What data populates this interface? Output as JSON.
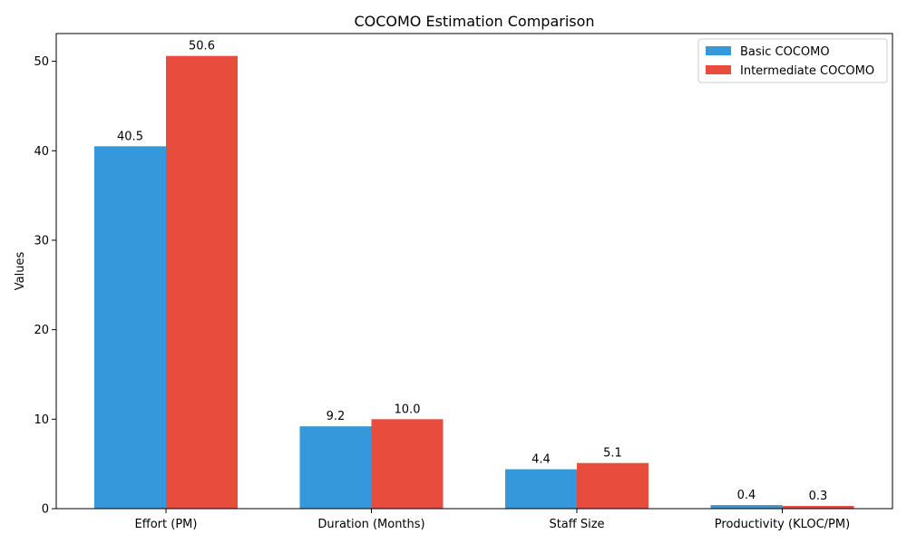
{
  "chart_data": {
    "type": "bar",
    "title": "COCOMO Estimation Comparison",
    "xlabel": "",
    "ylabel": "Values",
    "categories": [
      "Effort (PM)",
      "Duration (Months)",
      "Staff Size",
      "Productivity (KLOC/PM)"
    ],
    "series": [
      {
        "name": "Basic COCOMO",
        "color": "#3498db",
        "values": [
          40.5,
          9.2,
          4.4,
          0.4
        ],
        "labels": [
          "40.5",
          "9.2",
          "4.4",
          "0.4"
        ]
      },
      {
        "name": "Intermediate COCOMO",
        "color": "#e74c3c",
        "values": [
          50.6,
          10.0,
          5.1,
          0.3
        ],
        "labels": [
          "50.6",
          "10.0",
          "5.1",
          "0.3"
        ]
      }
    ],
    "ylim": [
      0,
      53.1
    ],
    "yticks": [
      0,
      10,
      20,
      30,
      40,
      50
    ],
    "grid": false,
    "legend_position": "top-right"
  }
}
